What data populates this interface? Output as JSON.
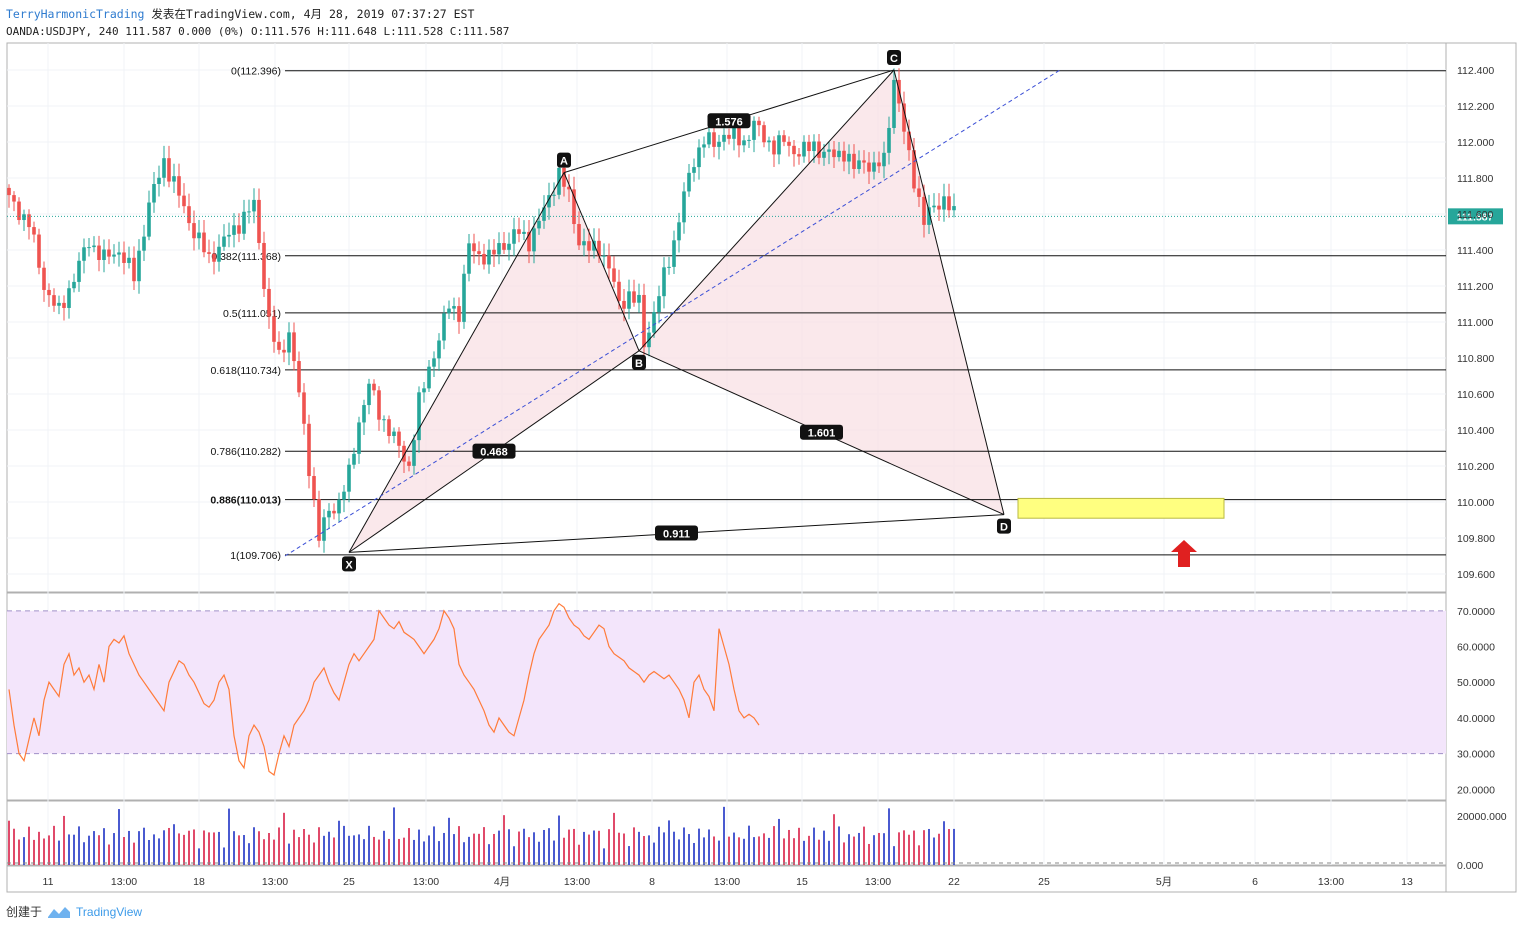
{
  "header": {
    "author": "TerryHarmonicTrading",
    "published": "发表在TradingView.com, 4月 28, 2019 07:37:27 EST",
    "symbol_line": "OANDA:USDJPY, 240 111.587 0.000 (0%) O:111.576 H:111.648 L:111.528 C:111.587"
  },
  "footer": {
    "created_label": "创建于",
    "brand": "TradingView"
  },
  "colors": {
    "up": "#26a69a",
    "down": "#ef5350",
    "pattern_fill": "#f8e0e4",
    "rsi_band": "#f3e5fb",
    "rsi_line": "#ff7b3a",
    "zone": "#ffff80",
    "arrow": "#e02020",
    "trendline": "#3b4fd6",
    "price_tag": "#26a69a"
  },
  "chart_data": [
    {
      "type": "candlestick",
      "symbol": "OANDA:USDJPY",
      "timeframe": "240",
      "ylim": [
        109.5,
        112.55
      ],
      "y_ticks": [
        "112.400",
        "112.200",
        "112.000",
        "111.800",
        "111.600",
        "111.400",
        "111.200",
        "111.000",
        "110.800",
        "110.600",
        "110.400",
        "110.200",
        "110.000",
        "109.800",
        "109.600"
      ],
      "x_ticks": [
        "11",
        "13:00",
        "18",
        "13:00",
        "25",
        "13:00",
        "4月",
        "13:00",
        "8",
        "13:00",
        "15",
        "13:00",
        "22",
        "25",
        "5月",
        "6",
        "13:00",
        "13"
      ],
      "last_price": 111.587,
      "last_price_label": "111.587",
      "price_path": [
        [
          0,
          111.68
        ],
        [
          4,
          111.55
        ],
        [
          7,
          111.2
        ],
        [
          10,
          111.05
        ],
        [
          13,
          111.25
        ],
        [
          16,
          111.45
        ],
        [
          19,
          111.35
        ],
        [
          22,
          111.4
        ],
        [
          25,
          111.25
        ],
        [
          28,
          111.65
        ],
        [
          31,
          111.9
        ],
        [
          34,
          111.7
        ],
        [
          37,
          111.5
        ],
        [
          40,
          111.35
        ],
        [
          43,
          111.45
        ],
        [
          46,
          111.55
        ],
        [
          49,
          111.65
        ],
        [
          50,
          111.45
        ],
        [
          52,
          111.0
        ],
        [
          54,
          110.8
        ],
        [
          56,
          110.95
        ],
        [
          58,
          110.6
        ],
        [
          60,
          110.2
        ],
        [
          62,
          109.8
        ],
        [
          64,
          109.95
        ],
        [
          66,
          110.0
        ],
        [
          68,
          110.15
        ],
        [
          70,
          110.45
        ],
        [
          72,
          110.65
        ],
        [
          74,
          110.5
        ],
        [
          76,
          110.4
        ],
        [
          78,
          110.3
        ],
        [
          80,
          110.2
        ],
        [
          82,
          110.55
        ],
        [
          84,
          110.75
        ],
        [
          86,
          110.9
        ],
        [
          88,
          111.1
        ],
        [
          90,
          111.05
        ],
        [
          92,
          111.42
        ],
        [
          94,
          111.38
        ],
        [
          96,
          111.35
        ],
        [
          98,
          111.42
        ],
        [
          100,
          111.45
        ],
        [
          102,
          111.5
        ],
        [
          104,
          111.45
        ],
        [
          106,
          111.55
        ],
        [
          108,
          111.7
        ],
        [
          110,
          111.82
        ],
        [
          112,
          111.7
        ],
        [
          114,
          111.45
        ],
        [
          116,
          111.4
        ],
        [
          118,
          111.42
        ],
        [
          120,
          111.3
        ],
        [
          122,
          111.1
        ],
        [
          124,
          111.15
        ],
        [
          126,
          111.1
        ],
        [
          127,
          110.88
        ],
        [
          129,
          111.05
        ],
        [
          131,
          111.25
        ],
        [
          133,
          111.45
        ],
        [
          135,
          111.7
        ],
        [
          137,
          111.9
        ],
        [
          139,
          112.02
        ],
        [
          141,
          111.98
        ],
        [
          143,
          112.05
        ],
        [
          145,
          112.02
        ],
        [
          147,
          112.0
        ],
        [
          149,
          112.1
        ],
        [
          151,
          112.02
        ],
        [
          153,
          111.98
        ],
        [
          155,
          112.0
        ],
        [
          157,
          111.95
        ],
        [
          159,
          111.95
        ],
        [
          161,
          111.98
        ],
        [
          163,
          111.94
        ],
        [
          165,
          111.92
        ],
        [
          167,
          111.95
        ],
        [
          169,
          111.85
        ],
        [
          171,
          111.9
        ],
        [
          173,
          111.85
        ],
        [
          175,
          111.9
        ],
        [
          177,
          112.35
        ],
        [
          179,
          112.05
        ],
        [
          181,
          111.8
        ],
        [
          183,
          111.55
        ],
        [
          185,
          111.65
        ],
        [
          187,
          111.68
        ],
        [
          189,
          111.59
        ]
      ],
      "harmonic_pattern": {
        "points": [
          {
            "label": "X",
            "bar": 68,
            "price": 109.72
          },
          {
            "label": "A",
            "bar": 111,
            "price": 111.83
          },
          {
            "label": "B",
            "bar": 126,
            "price": 110.84
          },
          {
            "label": "C",
            "bar": 177,
            "price": 112.4
          },
          {
            "label": "D",
            "bar": 199,
            "price": 109.93
          }
        ],
        "ratios": [
          {
            "label": "0.468",
            "between": [
              "X",
              "B"
            ]
          },
          {
            "label": "1.576",
            "between": [
              "A",
              "C"
            ]
          },
          {
            "label": "1.601",
            "between": [
              "B",
              "D"
            ]
          },
          {
            "label": "0.911",
            "between": [
              "X",
              "D"
            ]
          }
        ]
      },
      "fibonacci": [
        {
          "label": "0(112.396)",
          "price": 112.396
        },
        {
          "label": "0.382(111.368)",
          "price": 111.368
        },
        {
          "label": "0.5(111.051)",
          "price": 111.051
        },
        {
          "label": "0.618(110.734)",
          "price": 110.734
        },
        {
          "label": "0.786(110.282)",
          "price": 110.282
        },
        {
          "label": "0.886(110.013)",
          "price": 110.013
        },
        {
          "label": "1(109.706)",
          "price": 109.706
        }
      ],
      "zone": {
        "price_top": 110.02,
        "price_bottom": 109.91
      }
    },
    {
      "type": "line",
      "name": "RSI",
      "ylim": [
        17,
        75
      ],
      "band": [
        30,
        70
      ],
      "y_ticks": [
        "70.0000",
        "60.0000",
        "50.0000",
        "40.0000",
        "30.0000",
        "20.0000"
      ],
      "values": [
        48,
        38,
        30,
        28,
        34,
        40,
        35,
        45,
        50,
        48,
        46,
        55,
        58,
        52,
        54,
        50,
        52,
        48,
        55,
        50,
        60,
        62,
        61,
        63,
        58,
        55,
        52,
        50,
        48,
        46,
        44,
        42,
        50,
        53,
        56,
        55,
        52,
        50,
        47,
        44,
        43,
        45,
        50,
        52,
        48,
        35,
        28,
        26,
        35,
        38,
        36,
        32,
        25,
        24,
        30,
        35,
        32,
        38,
        40,
        42,
        45,
        50,
        52,
        54,
        50,
        47,
        45,
        50,
        55,
        58,
        56,
        58,
        60,
        62,
        70,
        68,
        66,
        65,
        67,
        64,
        63,
        62,
        60,
        58,
        60,
        62,
        65,
        70,
        68,
        65,
        55,
        52,
        50,
        48,
        45,
        42,
        38,
        36,
        40,
        38,
        36,
        35,
        40,
        45,
        52,
        58,
        62,
        64,
        66,
        70,
        72,
        71,
        68,
        66,
        65,
        63,
        62,
        64,
        66,
        65,
        60,
        58,
        57,
        56,
        54,
        53,
        52,
        50,
        52,
        53,
        52,
        51,
        52,
        50,
        48,
        45,
        40,
        50,
        52,
        48,
        46,
        42,
        65,
        60,
        55,
        48,
        42,
        40,
        41,
        40,
        38
      ]
    },
    {
      "type": "bar",
      "name": "Volume",
      "ylim": [
        0,
        26000
      ],
      "y_ticks": [
        "20000.000",
        "0.000"
      ]
    }
  ]
}
